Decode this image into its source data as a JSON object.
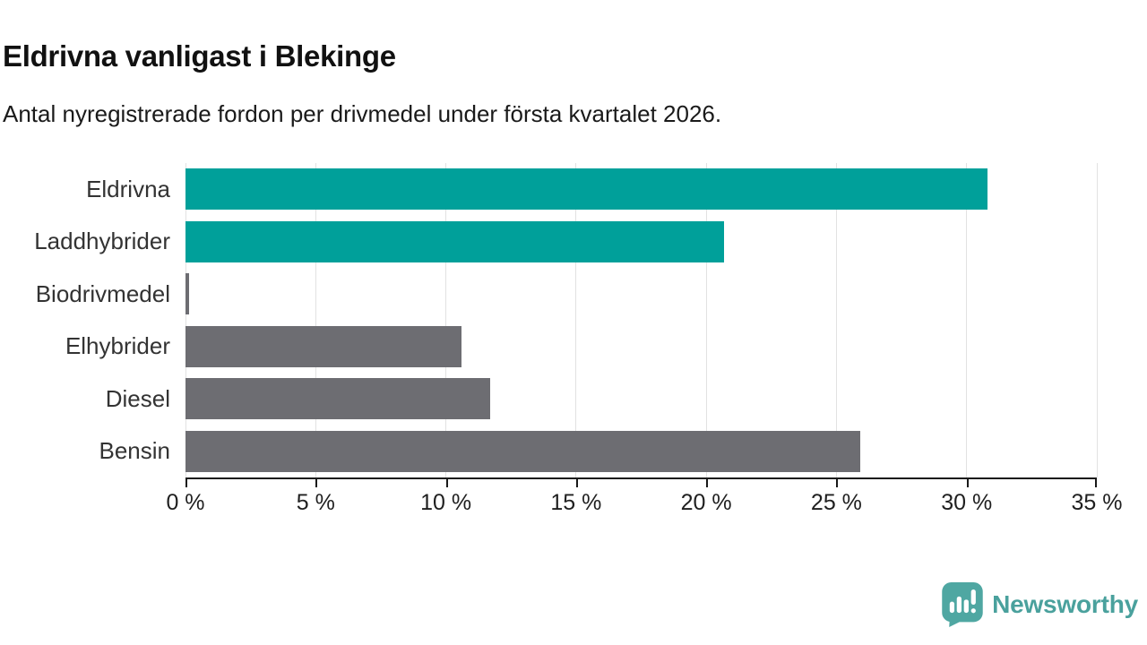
{
  "header": {
    "title": "Eldrivna vanligast i Blekinge",
    "subtitle": "Antal nyregistrerade fordon per drivmedel under första kvartalet 2026."
  },
  "chart_data": {
    "type": "bar",
    "orientation": "horizontal",
    "title": "Eldrivna vanligast i Blekinge",
    "subtitle": "Antal nyregistrerade fordon per drivmedel under första kvartalet 2026.",
    "categories": [
      "Eldrivna",
      "Laddhybrider",
      "Biodrivmedel",
      "Elhybrider",
      "Diesel",
      "Bensin"
    ],
    "values": [
      30.8,
      20.7,
      0.15,
      10.6,
      11.7,
      25.9
    ],
    "bar_colors": [
      "#00a09a",
      "#00a09a",
      "#6d6d72",
      "#6d6d72",
      "#6d6d72",
      "#6d6d72"
    ],
    "xlabel": "",
    "ylabel": "",
    "xlim": [
      0,
      35
    ],
    "x_ticks": [
      0,
      5,
      10,
      15,
      20,
      25,
      30,
      35
    ],
    "x_tick_suffix": " %",
    "grid": true,
    "legend": "none"
  },
  "colors": {
    "accent_teal": "#00a09a",
    "bar_gray": "#6d6d72",
    "grid": "#e2e2e2",
    "axis": "#1a1a1a",
    "logo_teal": "#4fa7a2"
  },
  "footer": {
    "brand": "Newsworthy"
  }
}
